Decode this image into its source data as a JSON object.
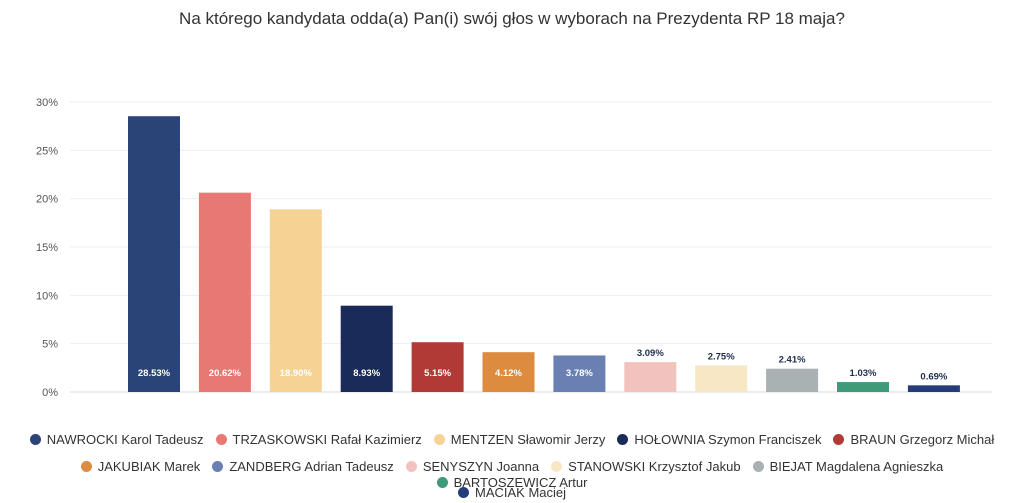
{
  "chart_data": {
    "type": "bar",
    "title": "Na którego kandydata odda(a) Pan(i) swój głos w wyborach na Prezydenta RP 18 maja?",
    "ylim": [
      0,
      30
    ],
    "yticks": [
      "0%",
      "5%",
      "10%",
      "15%",
      "20%",
      "25%",
      "30%"
    ],
    "grid": true,
    "legend_position": "bottom",
    "categories": [
      "NAWROCKI Karol Tadeusz",
      "TRZASKOWSKI Rafał Kazimierz",
      "MENTZEN Sławomir Jerzy",
      "HOŁOWNIA Szymon Franciszek",
      "BRAUN Grzegorz Michał",
      "JAKUBIAK Marek",
      "ZANDBERG Adrian Tadeusz",
      "SENYSZYN Joanna",
      "STANOWSKI Krzysztof Jakub",
      "BIEJAT Magdalena Agnieszka",
      "BARTOSZEWICZ Artur",
      "MACIAK Maciej"
    ],
    "values": [
      28.53,
      20.62,
      18.9,
      8.93,
      5.15,
      4.12,
      3.78,
      3.09,
      2.75,
      2.41,
      1.03,
      0.69
    ],
    "value_labels": [
      "28.53%",
      "20.62%",
      "18.90%",
      "8.93%",
      "5.15%",
      "4.12%",
      "3.78%",
      "3.09%",
      "2.75%",
      "2.41%",
      "1.03%",
      "0.69%"
    ],
    "colors": [
      "#2b4478",
      "#e87874",
      "#f5d394",
      "#1a2b5a",
      "#b23a36",
      "#dd8b3f",
      "#6a80b2",
      "#f2c2bf",
      "#f7e7c4",
      "#aab1b3",
      "#3f9a7a",
      "#243d7a"
    ],
    "label_inside": [
      true,
      true,
      true,
      true,
      true,
      true,
      true,
      false,
      false,
      false,
      false,
      false
    ]
  }
}
